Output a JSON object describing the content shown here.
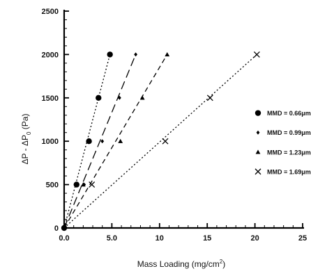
{
  "chart_data": {
    "type": "scatter",
    "title": "",
    "xlabel": "Mass Loading (mg/cm",
    "xlabel_sup": "2",
    "xlabel_end": ")",
    "ylabel": "ΔP - ΔP",
    "ylabel_sub": "0",
    "ylabel_end": " (Pa)",
    "xlim": [
      0,
      25
    ],
    "ylim": [
      0,
      2500
    ],
    "xticks": [
      0,
      5,
      10,
      15,
      20,
      25
    ],
    "xtick_labels": [
      "0.0",
      "5.0",
      "10",
      "15",
      "20",
      "25"
    ],
    "yticks": [
      0,
      500,
      1000,
      1500,
      2000,
      2500
    ],
    "ytick_labels": [
      "0",
      "500",
      "1000",
      "1500",
      "2000",
      "2500"
    ],
    "grid": false,
    "legend_position": "right",
    "series": [
      {
        "name": "MMD = 0.66μm",
        "marker": "circle",
        "line": "dotted",
        "x": [
          0.0,
          1.3,
          2.6,
          3.6,
          4.8
        ],
        "y": [
          0,
          500,
          1000,
          1500,
          2000
        ],
        "fit": {
          "x": [
            0,
            4.8
          ],
          "y": [
            0,
            2000
          ]
        }
      },
      {
        "name": "MMD = 0.99μm",
        "marker": "diamond",
        "line": "long-dash",
        "x": [
          2.1,
          4.0,
          5.8,
          7.5
        ],
        "y": [
          500,
          1000,
          1500,
          2000
        ],
        "fit": {
          "x": [
            0,
            7.5
          ],
          "y": [
            0,
            2000
          ]
        }
      },
      {
        "name": "MMD = 1.23μm",
        "marker": "triangle",
        "line": "dashed",
        "x": [
          2.0,
          5.9,
          8.2,
          10.8
        ],
        "y": [
          500,
          1000,
          1500,
          2000
        ],
        "fit": {
          "x": [
            0,
            10.8
          ],
          "y": [
            0,
            2000
          ]
        }
      },
      {
        "name": "MMD = 1.69μm",
        "marker": "x",
        "line": "fine-dotted",
        "x": [
          2.9,
          10.6,
          15.3,
          20.2
        ],
        "y": [
          500,
          1000,
          1500,
          2000
        ],
        "fit": {
          "x": [
            0,
            20.2
          ],
          "y": [
            0,
            2000
          ]
        }
      }
    ]
  }
}
